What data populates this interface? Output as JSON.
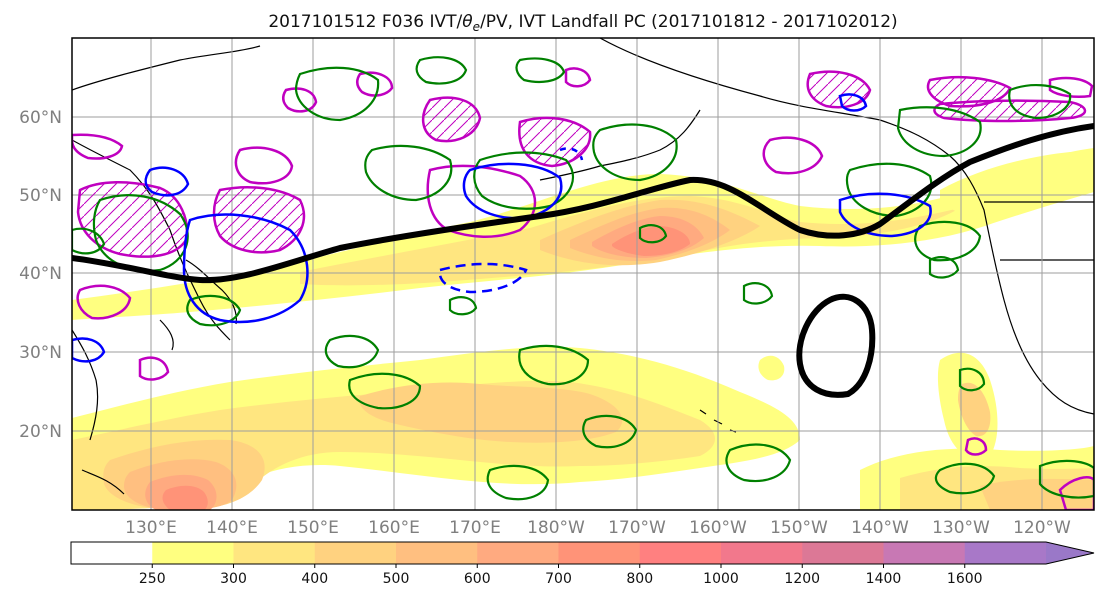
{
  "title": {
    "prefix": "2017101512 F036 IVT/",
    "theta": "θ",
    "theta_sub": "e",
    "suffix": "/PV, IVT Landfall PC (2017101812 - 2017102012)"
  },
  "map": {
    "lat_labels": [
      "60°N",
      "50°N",
      "40°N",
      "30°N",
      "20°N"
    ],
    "lon_labels": [
      "130°E",
      "140°E",
      "150°E",
      "160°E",
      "170°E",
      "180°W",
      "170°W",
      "160°W",
      "150°W",
      "140°W",
      "130°W",
      "120°W"
    ]
  },
  "colorbar": {
    "levels": [
      "250",
      "300",
      "400",
      "500",
      "600",
      "700",
      "800",
      "1000",
      "1200",
      "1400",
      "1600"
    ],
    "colors": [
      "#ffffff",
      "#ffff80",
      "#ffe680",
      "#ffd280",
      "#ffbf80",
      "#ffaa80",
      "#ff9378",
      "#ff8080",
      "#f2788c",
      "#dc7896",
      "#c878b4",
      "#a878c8",
      "#9a78c8"
    ]
  },
  "colors": {
    "theta_e_contour": "#008000",
    "pv_contour": "#c000c0",
    "ivt_contour": "#0000ff",
    "landfall_pc": "#000000",
    "coastline": "#000000"
  }
}
